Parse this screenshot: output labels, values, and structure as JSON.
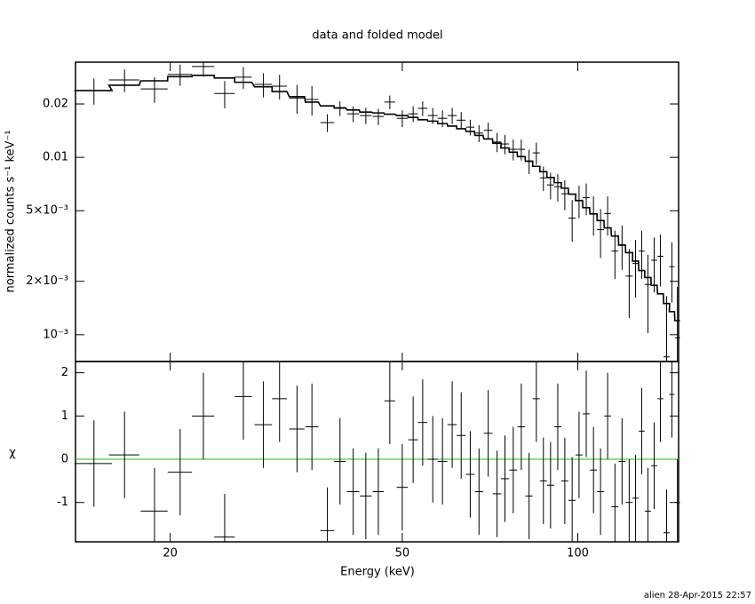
{
  "chart_data": [
    {
      "type": "errorbar-step",
      "title": "data and folded model",
      "ylabel": "normalized counts s⁻¹ keV⁻¹",
      "log_x": true,
      "log_y": true,
      "xlim": [
        13.76,
        148.9
      ],
      "ylim": [
        0.000706,
        0.0344
      ],
      "yticks": [
        0.02,
        0.01,
        {
          "value": 0.005,
          "label": "5×10⁻³"
        },
        {
          "value": 0.002,
          "label": "2×10⁻³"
        },
        {
          "value": 0.001,
          "label": "10⁻³"
        }
      ],
      "series": [
        {
          "type": "errorbar",
          "color": "#000000",
          "x": [
            14.8,
            16.7,
            18.8,
            20.8,
            22.8,
            24.8,
            26.7,
            28.9,
            30.8,
            33.0,
            35.0,
            37.2,
            39.1,
            41.2,
            43.3,
            45.5,
            47.6,
            50.0,
            52.2,
            54.2,
            56.4,
            58.6,
            60.9,
            63.1,
            65.4,
            67.7,
            70.2,
            72.7,
            75.0,
            77.5,
            80.0,
            82.5,
            84.9,
            87.3,
            89.8,
            92.4,
            95.0,
            97.8,
            100.5,
            103.4,
            106.4,
            109.4,
            112.5,
            115.8,
            119.1,
            122.5,
            125.6,
            128.7,
            131.9,
            135.2,
            138.6,
            142.0,
            145.0,
            148.2
          ],
          "xerr": [
            1.1,
            1.0,
            1.0,
            1.0,
            1.0,
            1.0,
            0.9,
            1.0,
            0.9,
            1.0,
            0.9,
            1.0,
            0.9,
            1.0,
            1.0,
            1.0,
            1.0,
            1.1,
            1.0,
            1.0,
            1.1,
            1.1,
            1.1,
            1.1,
            1.1,
            1.1,
            1.2,
            1.2,
            1.2,
            1.2,
            1.2,
            1.2,
            1.2,
            1.2,
            1.3,
            1.3,
            1.3,
            1.4,
            1.4,
            1.4,
            1.5,
            1.5,
            1.5,
            1.6,
            1.6,
            1.7,
            1.5,
            1.5,
            1.6,
            1.6,
            1.6,
            1.7,
            1.5,
            1.5
          ],
          "values": [
            0.0238,
            0.0273,
            0.0243,
            0.0293,
            0.0325,
            0.0229,
            0.0283,
            0.0258,
            0.0252,
            0.0216,
            0.0212,
            0.0157,
            0.0189,
            0.0176,
            0.0172,
            0.017,
            0.0205,
            0.0166,
            0.0176,
            0.0189,
            0.0172,
            0.0166,
            0.0172,
            0.0162,
            0.0148,
            0.0137,
            0.0142,
            0.0122,
            0.0119,
            0.0111,
            0.0111,
            0.00954,
            0.0106,
            0.00766,
            0.00699,
            0.00683,
            0.00623,
            0.00454,
            0.00573,
            0.00592,
            0.00482,
            0.00391,
            0.00482,
            0.00296,
            0.00322,
            0.00214,
            0.00252,
            0.00296,
            0.00192,
            0.00263,
            0.00277,
            0.00075,
            0.00242,
            0.00096
          ],
          "yerr": [
            0.004,
            0.004,
            0.004,
            0.004,
            0.004,
            0.004,
            0.004,
            0.004,
            0.004,
            0.004,
            0.004,
            0.0018,
            0.0018,
            0.0018,
            0.0018,
            0.0018,
            0.0018,
            0.0018,
            0.0018,
            0.0018,
            0.0018,
            0.0018,
            0.0018,
            0.0018,
            0.0015,
            0.0015,
            0.0015,
            0.0015,
            0.0015,
            0.0015,
            0.0015,
            0.0015,
            0.0015,
            0.0012,
            0.0012,
            0.0012,
            0.0012,
            0.0012,
            0.0012,
            0.0012,
            0.0012,
            0.0012,
            0.0012,
            0.0009,
            0.0009,
            0.0009,
            0.0009,
            0.0009,
            0.0009,
            0.0009,
            0.0009,
            0.0009,
            0.0009,
            0.0009
          ]
        },
        {
          "type": "step",
          "color": "#000000",
          "values": [
            0.0238,
            0.0255,
            0.027,
            0.0285,
            0.029,
            0.028,
            0.0265,
            0.025,
            0.0235,
            0.022,
            0.0205,
            0.0195,
            0.019,
            0.0185,
            0.018,
            0.0178,
            0.0175,
            0.0172,
            0.0168,
            0.0163,
            0.016,
            0.0155,
            0.015,
            0.0145,
            0.014,
            0.0133,
            0.0127,
            0.012,
            0.0113,
            0.0107,
            0.0101,
            0.0095,
            0.0089,
            0.0083,
            0.0077,
            0.0072,
            0.0067,
            0.0062,
            0.0057,
            0.0052,
            0.0048,
            0.0044,
            0.004,
            0.0036,
            0.0032,
            0.0029,
            0.0026,
            0.0023,
            0.0021,
            0.0019,
            0.0017,
            0.0015,
            0.00135,
            0.0012
          ]
        }
      ]
    },
    {
      "type": "residual",
      "xlabel": "Energy (keV)",
      "ylabel": "χ",
      "log_x": true,
      "xlim": [
        13.76,
        148.9
      ],
      "ylim": [
        -1.91,
        2.26
      ],
      "xticks": [
        20,
        50,
        100
      ],
      "yticks": [
        -1,
        0,
        1,
        2
      ],
      "zero_line_color": "#00d000",
      "series": [
        {
          "color": "#000000",
          "values": [
            -0.1,
            0.1,
            -1.2,
            -0.3,
            1.0,
            -1.8,
            1.45,
            0.8,
            1.4,
            0.7,
            0.75,
            -1.65,
            -0.05,
            -0.75,
            -0.85,
            -0.75,
            1.35,
            -0.65,
            0.45,
            0.85,
            0.0,
            -0.05,
            0.8,
            0.55,
            -0.35,
            -0.75,
            0.6,
            -0.8,
            -0.45,
            -0.25,
            0.75,
            -0.85,
            1.4,
            -0.5,
            -0.6,
            0.75,
            -0.5,
            -0.95,
            0.1,
            1.05,
            -0.25,
            -0.75,
            1.0,
            -1.1,
            -0.05,
            -1.0,
            -0.9,
            0.65,
            -1.2,
            -0.15,
            1.4,
            -1.7,
            1.5,
            -1.0
          ],
          "yerr": [
            1,
            1,
            1,
            1,
            1,
            1,
            1,
            1,
            1,
            1,
            1,
            1,
            1,
            1,
            1,
            1,
            1,
            1,
            1,
            1,
            1,
            1,
            1,
            1,
            1,
            1,
            1,
            1,
            1,
            1,
            1,
            1,
            1,
            1,
            1,
            1,
            1,
            1,
            1,
            1,
            1,
            1,
            1,
            1,
            1,
            1,
            1,
            1,
            1,
            1,
            1,
            1,
            1,
            1
          ]
        }
      ]
    }
  ],
  "footer": "alien 28-Apr-2015 22:57"
}
